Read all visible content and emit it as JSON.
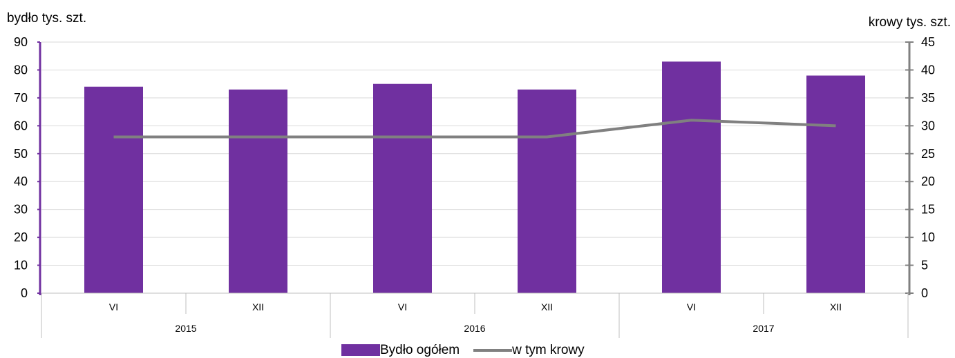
{
  "chart_data": {
    "type": "bar",
    "ylabel": "bydło tys. szt.",
    "ylabel_right": "krowy tys. szt.",
    "ylim": [
      0,
      90
    ],
    "ylim_right": [
      0,
      45
    ],
    "yticks": [
      0,
      10,
      20,
      30,
      40,
      50,
      60,
      70,
      80,
      90
    ],
    "yticks_right": [
      0,
      5,
      10,
      15,
      20,
      25,
      30,
      35,
      40,
      45
    ],
    "categories": [
      "VI",
      "XII",
      "VI",
      "XII",
      "VI",
      "XII"
    ],
    "groups": [
      "2015",
      "2016",
      "2017"
    ],
    "grid": true,
    "legend_position": "bottom",
    "series": [
      {
        "name": "Bydło ogółem",
        "type": "bar",
        "axis": "left",
        "color": "#7030a0",
        "values": [
          74,
          73,
          75,
          73,
          83,
          78
        ]
      },
      {
        "name": "w tym krowy",
        "type": "line",
        "axis": "right",
        "color": "#808080",
        "values": [
          28,
          28,
          28,
          28,
          31,
          30
        ]
      }
    ]
  }
}
